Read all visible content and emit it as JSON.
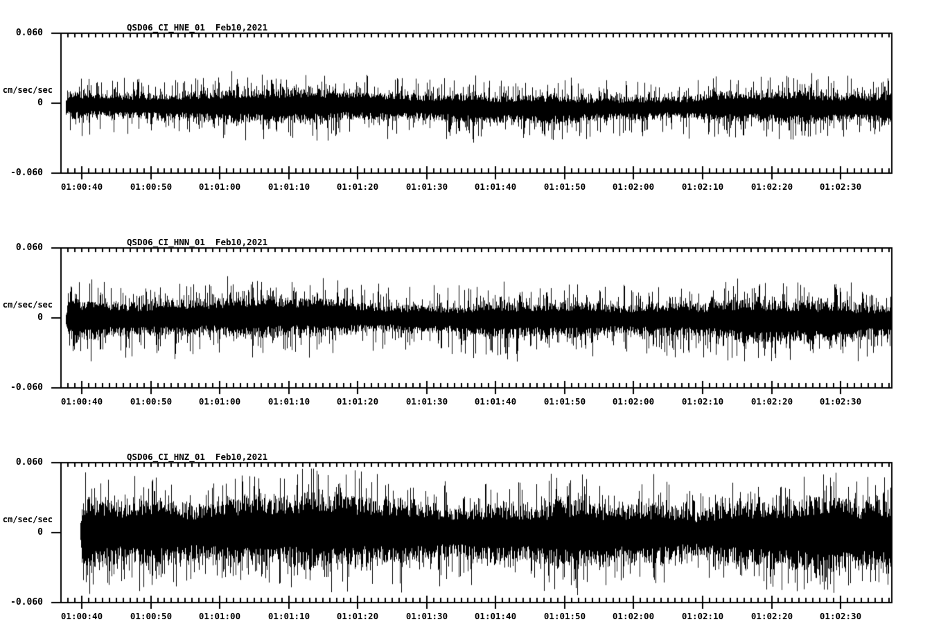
{
  "app": {
    "background": "#ffffff",
    "foreground": "#000000"
  },
  "chart_data": [
    {
      "type": "line",
      "title": "QSD06_CI_HNE_01  Feb10,2021",
      "ylabel": "cm/sec/sec",
      "ylim": [
        -0.06,
        0.06
      ],
      "yticks": [
        0.06,
        0,
        -0.06
      ],
      "ytick_labels": [
        "0.060",
        "0",
        "-0.060"
      ],
      "x_axis": {
        "major_tick_labels": [
          "01:00:40",
          "01:00:50",
          "01:01:00",
          "01:01:10",
          "01:01:20",
          "01:01:30",
          "01:01:40",
          "01:01:50",
          "01:02:00",
          "01:02:10",
          "01:02:20",
          "01:02:30"
        ],
        "major_tick_interval_seconds": 10,
        "minor_ticks_per_major": 10
      },
      "grid": false,
      "legend": false,
      "signal": {
        "kind": "continuous-seismic-noise-waveform",
        "baseline_offset": -0.003,
        "noise_band_amplitude": 0.012,
        "noise_peak_amplitude": 0.03,
        "data_start_fraction": 0.004
      }
    },
    {
      "type": "line",
      "title": "QSD06_CI_HNN_01  Feb10,2021",
      "ylabel": "cm/sec/sec",
      "ylim": [
        -0.06,
        0.06
      ],
      "yticks": [
        0.06,
        0,
        -0.06
      ],
      "ytick_labels": [
        "0.060",
        "0",
        "-0.060"
      ],
      "x_axis": {
        "major_tick_labels": [
          "01:00:40",
          "01:00:50",
          "01:01:00",
          "01:01:10",
          "01:01:20",
          "01:01:30",
          "01:01:40",
          "01:01:50",
          "01:02:00",
          "01:02:10",
          "01:02:20",
          "01:02:30"
        ],
        "major_tick_interval_seconds": 10,
        "minor_ticks_per_major": 10
      },
      "grid": false,
      "legend": false,
      "signal": {
        "kind": "continuous-seismic-noise-waveform",
        "baseline_offset": -0.001,
        "noise_band_amplitude": 0.015,
        "noise_peak_amplitude": 0.036,
        "data_start_fraction": 0.004
      }
    },
    {
      "type": "line",
      "title": "QSD06_CI_HNZ_01  Feb10,2021",
      "ylabel": "cm/sec/sec",
      "ylim": [
        -0.06,
        0.06
      ],
      "yticks": [
        0.06,
        0,
        -0.06
      ],
      "ytick_labels": [
        "0.060",
        "0",
        "-0.060"
      ],
      "x_axis": {
        "major_tick_labels": [
          "01:00:40",
          "01:00:50",
          "01:01:00",
          "01:01:10",
          "01:01:20",
          "01:01:30",
          "01:01:40",
          "01:01:50",
          "01:02:00",
          "01:02:10",
          "01:02:20",
          "01:02:30"
        ],
        "major_tick_interval_seconds": 10,
        "minor_ticks_per_major": 10
      },
      "grid": false,
      "legend": false,
      "signal": {
        "kind": "continuous-seismic-noise-waveform",
        "baseline_offset": 0,
        "noise_band_amplitude": 0.027,
        "noise_peak_amplitude": 0.053,
        "data_start_fraction": 0.022
      }
    }
  ]
}
